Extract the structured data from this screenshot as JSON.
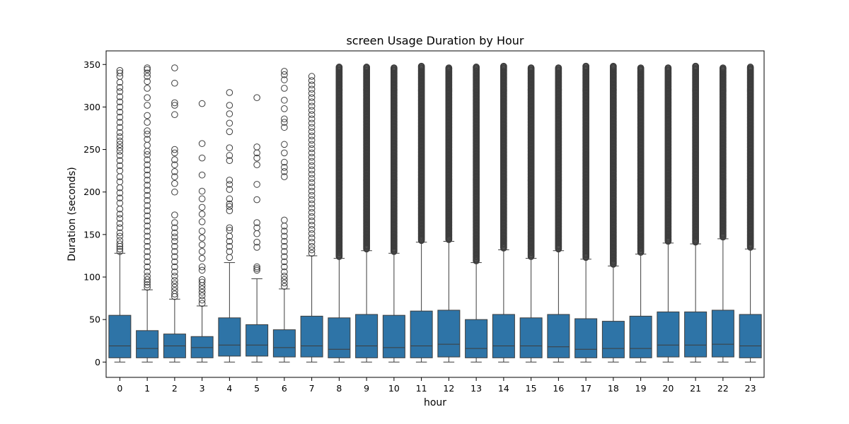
{
  "chart_data": {
    "type": "box",
    "title": "screen Usage Duration by Hour",
    "xlabel": "hour",
    "ylabel": "Duration (seconds)",
    "ylim": [
      -18,
      366
    ],
    "yticks": [
      0,
      50,
      100,
      150,
      200,
      250,
      300,
      350
    ],
    "categories": [
      "0",
      "1",
      "2",
      "3",
      "4",
      "5",
      "6",
      "7",
      "8",
      "9",
      "10",
      "11",
      "12",
      "13",
      "14",
      "15",
      "16",
      "17",
      "18",
      "19",
      "20",
      "21",
      "22",
      "23"
    ],
    "colors": {
      "box": "#2e74a7",
      "line": "#3d3d3d",
      "outlier": "#3d3d3d"
    },
    "boxes": [
      {
        "hour": "0",
        "min": 0,
        "q1": 5,
        "median": 19,
        "q3": 55,
        "whisker_high": 128,
        "outliers": [
          130,
          133,
          136,
          139,
          143,
          148,
          152,
          158,
          163,
          169,
          174,
          180,
          187,
          193,
          199,
          205,
          212,
          218,
          225,
          231,
          237,
          243,
          248,
          252,
          256,
          260,
          265,
          270,
          276,
          282,
          288,
          294,
          300,
          306,
          312,
          318,
          323,
          329,
          336,
          340,
          343
        ]
      },
      {
        "hour": "1",
        "min": 0,
        "q1": 5,
        "median": 16,
        "q3": 37,
        "whisker_high": 85,
        "outliers": [
          88,
          91,
          94,
          97,
          101,
          106,
          112,
          118,
          124,
          130,
          136,
          142,
          148,
          154,
          160,
          166,
          172,
          178,
          184,
          190,
          196,
          202,
          208,
          214,
          220,
          226,
          232,
          238,
          244,
          248,
          255,
          262,
          268,
          272,
          282,
          290,
          302,
          311,
          322,
          330,
          336,
          340,
          344,
          346
        ]
      },
      {
        "hour": "2",
        "min": 0,
        "q1": 5,
        "median": 19,
        "q3": 33,
        "whisker_high": 74,
        "outliers": [
          77,
          80,
          84,
          88,
          92,
          96,
          101,
          106,
          112,
          118,
          124,
          130,
          136,
          142,
          147,
          152,
          158,
          164,
          173,
          200,
          210,
          218,
          224,
          232,
          238,
          246,
          250,
          291,
          302,
          305,
          328,
          346
        ]
      },
      {
        "hour": "3",
        "min": 0,
        "q1": 5,
        "median": 17,
        "q3": 30,
        "whisker_high": 66,
        "outliers": [
          69,
          73,
          78,
          82,
          86,
          90,
          94,
          97,
          108,
          112,
          122,
          130,
          138,
          146,
          154,
          165,
          174,
          182,
          192,
          201,
          220,
          240,
          257,
          304
        ]
      },
      {
        "hour": "4",
        "min": 0,
        "q1": 7,
        "median": 20,
        "q3": 52,
        "whisker_high": 117,
        "outliers": [
          123,
          130,
          136,
          142,
          148,
          155,
          158,
          178,
          183,
          186,
          192,
          203,
          209,
          214,
          237,
          243,
          252,
          271,
          281,
          292,
          302,
          317
        ]
      },
      {
        "hour": "5",
        "min": 0,
        "q1": 7,
        "median": 20,
        "q3": 44,
        "whisker_high": 98,
        "outliers": [
          108,
          110,
          112,
          135,
          141,
          151,
          158,
          164,
          191,
          209,
          232,
          240,
          246,
          253,
          311
        ]
      },
      {
        "hour": "6",
        "min": 0,
        "q1": 6,
        "median": 17,
        "q3": 38,
        "whisker_high": 86,
        "outliers": [
          89,
          93,
          97,
          101,
          106,
          112,
          118,
          124,
          130,
          136,
          142,
          148,
          154,
          160,
          167,
          218,
          224,
          229,
          235,
          246,
          256,
          276,
          282,
          286,
          298,
          308,
          322,
          332,
          338,
          342
        ]
      },
      {
        "hour": "7",
        "min": 0,
        "q1": 6,
        "median": 19,
        "q3": 54,
        "whisker_high": 125,
        "outliers": [
          128,
          132,
          136,
          141,
          146,
          151,
          156,
          161,
          166,
          171,
          176,
          181,
          186,
          191,
          196,
          201,
          206,
          211,
          216,
          221,
          226,
          231,
          236,
          241,
          246,
          251,
          256,
          261,
          266,
          271,
          276,
          281,
          286,
          291,
          296,
          301,
          306,
          311,
          316,
          321,
          326,
          331,
          336
        ]
      },
      {
        "dense": true,
        "hour": "8",
        "min": 0,
        "q1": 5,
        "median": 15,
        "q3": 52,
        "whisker_high": 122,
        "out_low": 124,
        "out_high": 347
      },
      {
        "dense": true,
        "hour": "9",
        "min": 0,
        "q1": 5,
        "median": 19,
        "q3": 56,
        "whisker_high": 131,
        "out_low": 133,
        "out_high": 347
      },
      {
        "dense": true,
        "hour": "10",
        "min": 0,
        "q1": 5,
        "median": 17,
        "q3": 55,
        "whisker_high": 128,
        "out_low": 130,
        "out_high": 346
      },
      {
        "dense": true,
        "hour": "11",
        "min": 0,
        "q1": 5,
        "median": 19,
        "q3": 60,
        "whisker_high": 141,
        "out_low": 143,
        "out_high": 348
      },
      {
        "dense": true,
        "hour": "12",
        "min": 0,
        "q1": 6,
        "median": 21,
        "q3": 61,
        "whisker_high": 142,
        "out_low": 144,
        "out_high": 346
      },
      {
        "dense": true,
        "hour": "13",
        "min": 0,
        "q1": 5,
        "median": 16,
        "q3": 50,
        "whisker_high": 117,
        "out_low": 119,
        "out_high": 347
      },
      {
        "dense": true,
        "hour": "14",
        "min": 0,
        "q1": 5,
        "median": 19,
        "q3": 56,
        "whisker_high": 132,
        "out_low": 134,
        "out_high": 348
      },
      {
        "dense": true,
        "hour": "15",
        "min": 0,
        "q1": 5,
        "median": 19,
        "q3": 52,
        "whisker_high": 122,
        "out_low": 124,
        "out_high": 346
      },
      {
        "dense": true,
        "hour": "16",
        "min": 0,
        "q1": 5,
        "median": 18,
        "q3": 56,
        "whisker_high": 131,
        "out_low": 133,
        "out_high": 346
      },
      {
        "dense": true,
        "hour": "17",
        "min": 0,
        "q1": 5,
        "median": 15,
        "q3": 51,
        "whisker_high": 121,
        "out_low": 123,
        "out_high": 348
      },
      {
        "dense": true,
        "hour": "18",
        "min": 0,
        "q1": 5,
        "median": 16,
        "q3": 48,
        "whisker_high": 113,
        "out_low": 115,
        "out_high": 348
      },
      {
        "dense": true,
        "hour": "19",
        "min": 0,
        "q1": 5,
        "median": 16,
        "q3": 54,
        "whisker_high": 127,
        "out_low": 129,
        "out_high": 346
      },
      {
        "dense": true,
        "hour": "20",
        "min": 0,
        "q1": 6,
        "median": 20,
        "q3": 59,
        "whisker_high": 140,
        "out_low": 142,
        "out_high": 346
      },
      {
        "dense": true,
        "hour": "21",
        "min": 0,
        "q1": 6,
        "median": 20,
        "q3": 59,
        "whisker_high": 139,
        "out_low": 141,
        "out_high": 348
      },
      {
        "dense": true,
        "hour": "22",
        "min": 0,
        "q1": 6,
        "median": 21,
        "q3": 61,
        "whisker_high": 145,
        "out_low": 147,
        "out_high": 346
      },
      {
        "dense": true,
        "hour": "23",
        "min": 0,
        "q1": 5,
        "median": 19,
        "q3": 56,
        "whisker_high": 133,
        "out_low": 135,
        "out_high": 347
      }
    ]
  }
}
